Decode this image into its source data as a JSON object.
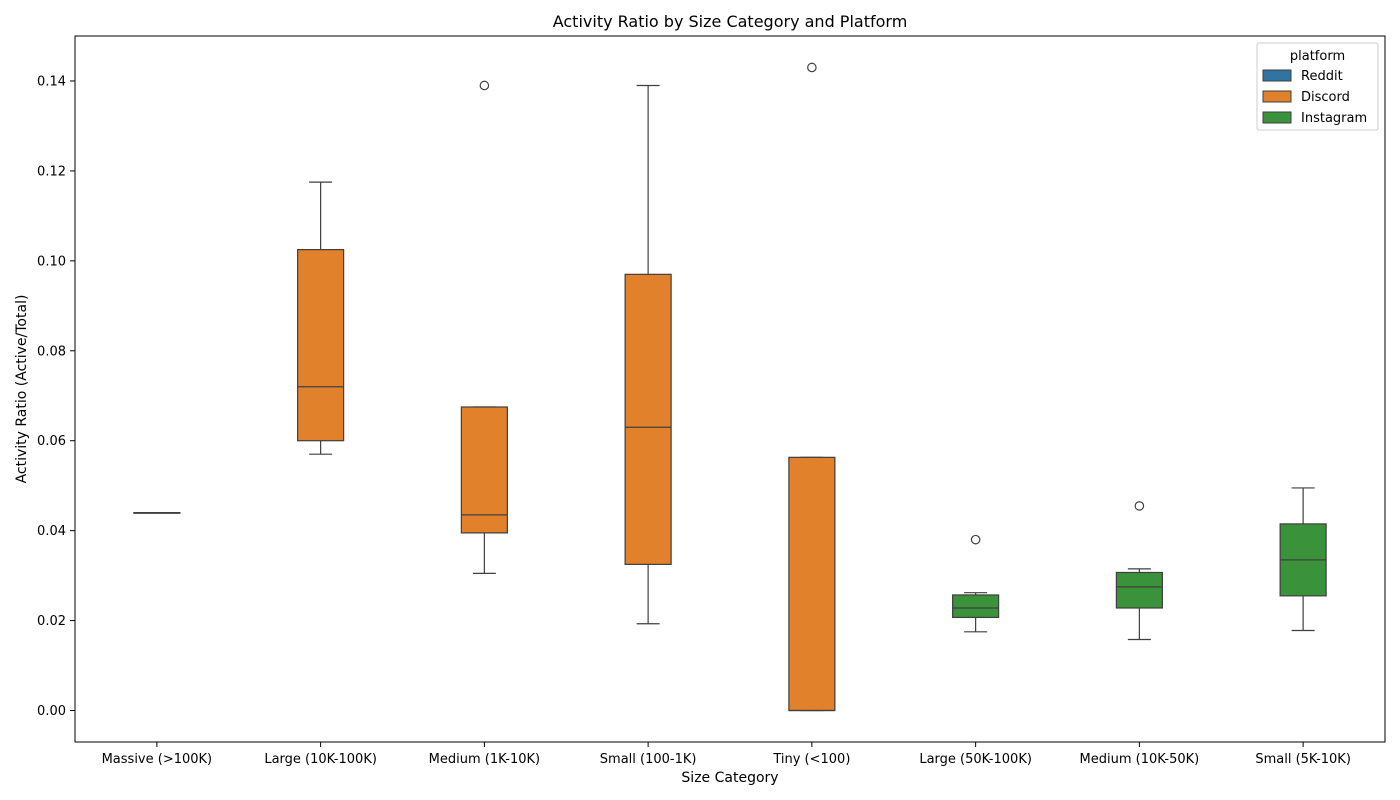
{
  "chart_data": {
    "type": "box",
    "title": "Activity Ratio by Size Category and Platform",
    "xlabel": "Size Category",
    "ylabel": "Activity Ratio (Active/Total)",
    "ylim": [
      -0.007,
      0.15
    ],
    "yticks": [
      0.0,
      0.02,
      0.04,
      0.06,
      0.08,
      0.1,
      0.12,
      0.14
    ],
    "ytick_labels": [
      "0.00",
      "0.02",
      "0.04",
      "0.06",
      "0.08",
      "0.10",
      "0.12",
      "0.14"
    ],
    "categories": [
      "Massive (>100K)",
      "Large (10K-100K)",
      "Medium (1K-10K)",
      "Small (100-1K)",
      "Tiny (<100)",
      "Large (50K-100K)",
      "Medium (10K-50K)",
      "Small (5K-10K)"
    ],
    "legend": {
      "title": "platform",
      "position": "top-right",
      "entries": [
        {
          "name": "Reddit",
          "color": "#3274a1"
        },
        {
          "name": "Discord",
          "color": "#e1812c"
        },
        {
          "name": "Instagram",
          "color": "#3a923a"
        }
      ]
    },
    "boxes": [
      {
        "category": "Massive (>100K)",
        "platform": "Reddit",
        "whisker_low": 0.044,
        "q1": 0.044,
        "median": 0.044,
        "q3": 0.044,
        "whisker_high": 0.044,
        "outliers": []
      },
      {
        "category": "Large (10K-100K)",
        "platform": "Discord",
        "whisker_low": 0.057,
        "q1": 0.06,
        "median": 0.072,
        "q3": 0.1025,
        "whisker_high": 0.1175,
        "outliers": []
      },
      {
        "category": "Medium (1K-10K)",
        "platform": "Discord",
        "whisker_low": 0.0305,
        "q1": 0.0395,
        "median": 0.0435,
        "q3": 0.0675,
        "whisker_high": 0.0675,
        "outliers": [
          0.139
        ]
      },
      {
        "category": "Small (100-1K)",
        "platform": "Discord",
        "whisker_low": 0.0193,
        "q1": 0.0325,
        "median": 0.063,
        "q3": 0.097,
        "whisker_high": 0.139,
        "outliers": []
      },
      {
        "category": "Tiny (<100)",
        "platform": "Discord",
        "whisker_low": 0.0,
        "q1": 0.0,
        "median": 0.0,
        "q3": 0.0563,
        "whisker_high": 0.0563,
        "outliers": [
          0.143
        ]
      },
      {
        "category": "Large (50K-100K)",
        "platform": "Instagram",
        "whisker_low": 0.0175,
        "q1": 0.0207,
        "median": 0.0228,
        "q3": 0.0257,
        "whisker_high": 0.0262,
        "outliers": [
          0.038
        ]
      },
      {
        "category": "Medium (10K-50K)",
        "platform": "Instagram",
        "whisker_low": 0.0158,
        "q1": 0.0228,
        "median": 0.0275,
        "q3": 0.0307,
        "whisker_high": 0.0315,
        "outliers": [
          0.0455
        ]
      },
      {
        "category": "Small (5K-10K)",
        "platform": "Instagram",
        "whisker_low": 0.0178,
        "q1": 0.0255,
        "median": 0.0335,
        "q3": 0.0415,
        "whisker_high": 0.0495,
        "outliers": []
      }
    ],
    "grid": false
  }
}
